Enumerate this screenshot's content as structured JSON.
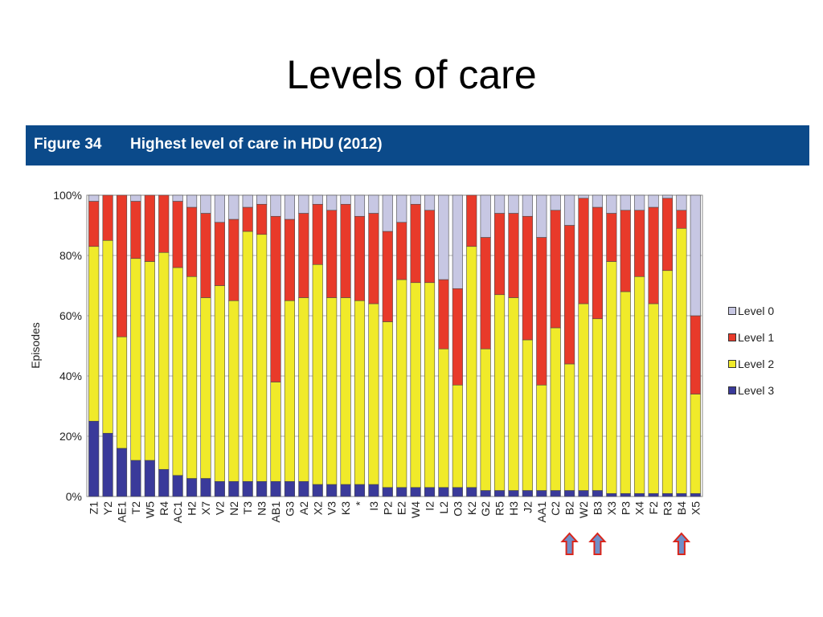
{
  "slide": {
    "title": "Levels of care"
  },
  "figure": {
    "number": "Figure 34",
    "title": "Highest level of care in HDU (2012)"
  },
  "chart_data": {
    "type": "bar",
    "stacked": true,
    "ylabel": "Episodes",
    "ylim": [
      0,
      100
    ],
    "yticks": [
      "0%",
      "20%",
      "40%",
      "60%",
      "80%",
      "100%"
    ],
    "categories": [
      "Z1",
      "Y2",
      "AE1",
      "T2",
      "W5",
      "R4",
      "AC1",
      "H2",
      "X7",
      "V2",
      "N2",
      "T3",
      "N3",
      "AB1",
      "G3",
      "A2",
      "X2",
      "V3",
      "K3",
      "*",
      "I3",
      "P2",
      "E2",
      "W4",
      "I2",
      "L2",
      "O3",
      "K2",
      "G2",
      "R5",
      "H3",
      "J2",
      "AA1",
      "C2",
      "B2",
      "W2",
      "B3",
      "X3",
      "P3",
      "X4",
      "F2",
      "R3",
      "B4",
      "X5"
    ],
    "series": [
      {
        "name": "Level 3",
        "color": "#3a3a9a",
        "values": [
          25,
          21,
          16,
          12,
          12,
          9,
          7,
          6,
          6,
          5,
          5,
          5,
          5,
          5,
          5,
          5,
          4,
          4,
          4,
          4,
          4,
          3,
          3,
          3,
          3,
          3,
          3,
          3,
          2,
          2,
          2,
          2,
          2,
          2,
          2,
          2,
          2,
          1,
          1,
          1,
          1,
          1,
          1,
          1
        ]
      },
      {
        "name": "Level 2",
        "color": "#f0ea2a",
        "values": [
          58,
          64,
          37,
          67,
          66,
          72,
          69,
          67,
          60,
          65,
          60,
          83,
          82,
          33,
          60,
          61,
          73,
          62,
          62,
          61,
          60,
          55,
          69,
          68,
          68,
          46,
          34,
          80,
          47,
          65,
          64,
          50,
          35,
          54,
          42,
          62,
          57,
          77,
          67,
          72,
          63,
          74,
          88,
          33
        ]
      },
      {
        "name": "Level 1",
        "color": "#e83a2a",
        "values": [
          15,
          15,
          47,
          19,
          22,
          19,
          22,
          23,
          28,
          21,
          27,
          8,
          10,
          55,
          27,
          28,
          20,
          29,
          31,
          28,
          30,
          30,
          19,
          26,
          24,
          23,
          32,
          17,
          37,
          27,
          28,
          41,
          49,
          39,
          46,
          35,
          37,
          16,
          27,
          22,
          32,
          24,
          6,
          26
        ]
      },
      {
        "name": "Level 0",
        "color": "#c7c7e3",
        "values": [
          2,
          0,
          0,
          2,
          0,
          0,
          2,
          4,
          6,
          9,
          8,
          4,
          3,
          7,
          8,
          6,
          3,
          5,
          3,
          7,
          6,
          12,
          9,
          3,
          5,
          28,
          31,
          0,
          14,
          6,
          6,
          7,
          14,
          5,
          10,
          1,
          4,
          6,
          5,
          5,
          4,
          1,
          5,
          40
        ]
      }
    ],
    "highlighted": [
      "B2",
      "B3",
      "B4"
    ],
    "legend_order": [
      "Level 0",
      "Level 1",
      "Level 2",
      "Level 3"
    ],
    "legend_position": "right",
    "grid": true
  }
}
